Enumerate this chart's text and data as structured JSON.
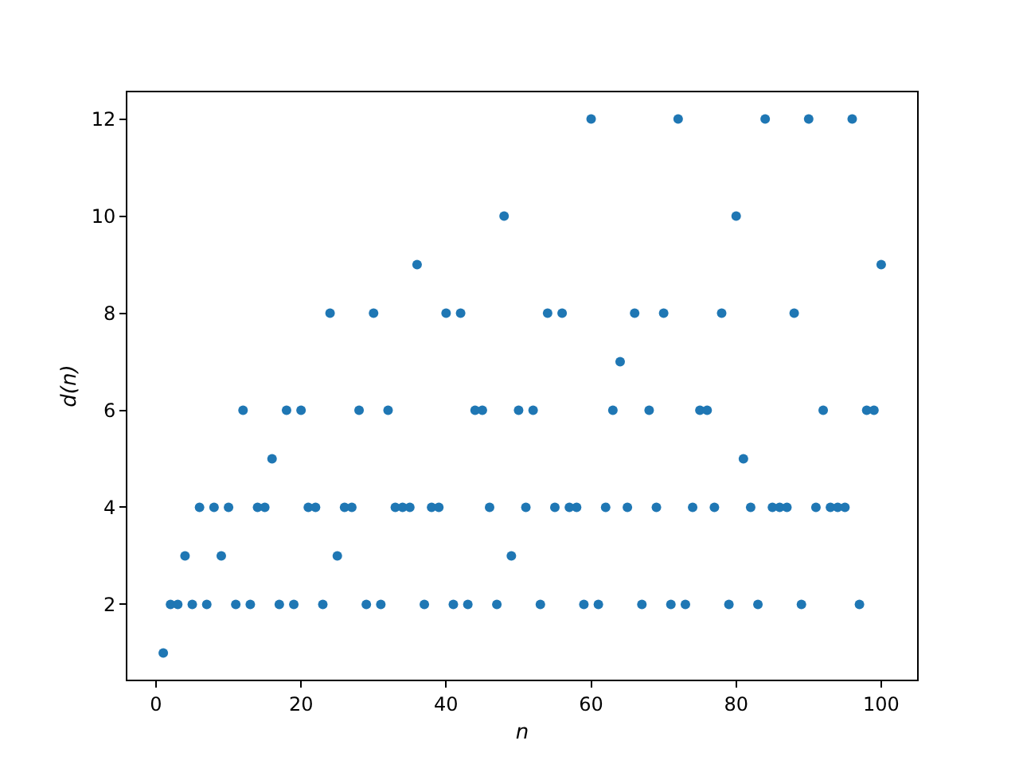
{
  "chart_data": {
    "type": "scatter",
    "xlabel": "n",
    "ylabel": "d(n)",
    "x": [
      1,
      2,
      3,
      4,
      5,
      6,
      7,
      8,
      9,
      10,
      11,
      12,
      13,
      14,
      15,
      16,
      17,
      18,
      19,
      20,
      21,
      22,
      23,
      24,
      25,
      26,
      27,
      28,
      29,
      30,
      31,
      32,
      33,
      34,
      35,
      36,
      37,
      38,
      39,
      40,
      41,
      42,
      43,
      44,
      45,
      46,
      47,
      48,
      49,
      50,
      51,
      52,
      53,
      54,
      55,
      56,
      57,
      58,
      59,
      60,
      61,
      62,
      63,
      64,
      65,
      66,
      67,
      68,
      69,
      70,
      71,
      72,
      73,
      74,
      75,
      76,
      77,
      78,
      79,
      80,
      81,
      82,
      83,
      84,
      85,
      86,
      87,
      88,
      89,
      90,
      91,
      92,
      93,
      94,
      95,
      96,
      97,
      98,
      99,
      100
    ],
    "series": [
      {
        "color": "#1f77b4",
        "values": [
          1,
          2,
          2,
          3,
          2,
          4,
          2,
          4,
          3,
          4,
          2,
          6,
          2,
          4,
          4,
          5,
          2,
          6,
          2,
          6,
          4,
          4,
          2,
          8,
          3,
          4,
          4,
          6,
          2,
          8,
          2,
          6,
          4,
          4,
          4,
          9,
          2,
          4,
          4,
          8,
          2,
          8,
          2,
          6,
          6,
          4,
          2,
          10,
          3,
          6,
          4,
          6,
          2,
          8,
          4,
          8,
          4,
          4,
          2,
          12,
          2,
          4,
          6,
          7,
          4,
          8,
          2,
          6,
          4,
          8,
          2,
          12,
          2,
          4,
          6,
          6,
          4,
          8,
          2,
          10,
          5,
          4,
          2,
          12,
          4,
          4,
          4,
          8,
          2,
          12,
          4,
          6,
          4,
          4,
          4,
          12,
          2,
          6,
          6,
          9
        ]
      }
    ],
    "xlim": [
      -3.95,
      104.95
    ],
    "ylim": [
      0.45,
      12.55
    ],
    "xticks": [
      0,
      20,
      40,
      60,
      80,
      100
    ],
    "yticks": [
      2,
      4,
      6,
      8,
      10,
      12
    ]
  }
}
